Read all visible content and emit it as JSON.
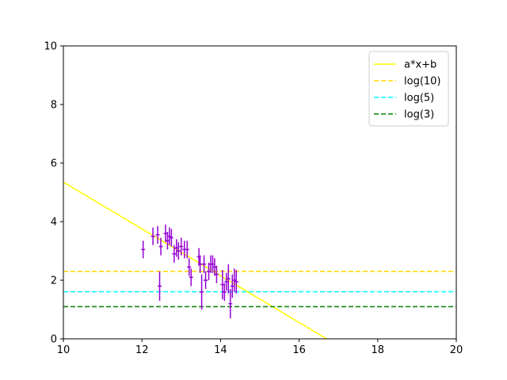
{
  "chart_data": {
    "type": "scatter",
    "title": "",
    "xlabel": "",
    "ylabel": "",
    "xlim": [
      10,
      20
    ],
    "ylim": [
      0,
      10
    ],
    "xticks": [
      10,
      12,
      14,
      16,
      18,
      20
    ],
    "yticks": [
      0,
      2,
      4,
      6,
      8,
      10
    ],
    "grid": false,
    "legend_position": "top-right",
    "lines": [
      {
        "name": "a*x+b",
        "kind": "linear",
        "x": [
          10,
          16.7
        ],
        "y": [
          5.35,
          0.0
        ],
        "color": "#ffff00",
        "dash": "solid"
      },
      {
        "name": "log(10)",
        "kind": "constant",
        "value": 2.303,
        "color": "#ffd700",
        "dash": "dashed"
      },
      {
        "name": "log(5)",
        "kind": "constant",
        "value": 1.609,
        "color": "#00ffff",
        "dash": "dashed"
      },
      {
        "name": "log(3)",
        "kind": "constant",
        "value": 1.099,
        "color": "#008000",
        "dash": "dashed"
      }
    ],
    "points": {
      "color": "#9400d3",
      "data": [
        {
          "x": 12.03,
          "y": 3.05,
          "ye": 0.3,
          "xe": 0.05
        },
        {
          "x": 12.28,
          "y": 3.5,
          "ye": 0.3,
          "xe": 0.05
        },
        {
          "x": 12.4,
          "y": 3.55,
          "ye": 0.3,
          "xe": 0.05
        },
        {
          "x": 12.45,
          "y": 1.8,
          "ye": 0.5,
          "xe": 0.05
        },
        {
          "x": 12.48,
          "y": 3.15,
          "ye": 0.3,
          "xe": 0.05
        },
        {
          "x": 12.6,
          "y": 3.6,
          "ye": 0.3,
          "xe": 0.05
        },
        {
          "x": 12.65,
          "y": 3.35,
          "ye": 0.3,
          "xe": 0.05
        },
        {
          "x": 12.7,
          "y": 3.5,
          "ye": 0.3,
          "xe": 0.05
        },
        {
          "x": 12.75,
          "y": 3.45,
          "ye": 0.3,
          "xe": 0.05
        },
        {
          "x": 12.82,
          "y": 2.9,
          "ye": 0.3,
          "xe": 0.05
        },
        {
          "x": 12.88,
          "y": 3.1,
          "ye": 0.3,
          "xe": 0.05
        },
        {
          "x": 12.93,
          "y": 3.0,
          "ye": 0.3,
          "xe": 0.05
        },
        {
          "x": 13.0,
          "y": 3.15,
          "ye": 0.3,
          "xe": 0.05
        },
        {
          "x": 13.08,
          "y": 3.05,
          "ye": 0.3,
          "xe": 0.05
        },
        {
          "x": 13.15,
          "y": 3.05,
          "ye": 0.3,
          "xe": 0.05
        },
        {
          "x": 13.2,
          "y": 2.45,
          "ye": 0.3,
          "xe": 0.05
        },
        {
          "x": 13.25,
          "y": 2.1,
          "ye": 0.3,
          "xe": 0.05
        },
        {
          "x": 13.45,
          "y": 2.8,
          "ye": 0.3,
          "xe": 0.05
        },
        {
          "x": 13.48,
          "y": 2.55,
          "ye": 0.3,
          "xe": 0.05
        },
        {
          "x": 13.52,
          "y": 1.6,
          "ye": 0.6,
          "xe": 0.05
        },
        {
          "x": 13.58,
          "y": 2.55,
          "ye": 0.3,
          "xe": 0.05
        },
        {
          "x": 13.62,
          "y": 2.0,
          "ye": 0.3,
          "xe": 0.05
        },
        {
          "x": 13.7,
          "y": 2.3,
          "ye": 0.3,
          "xe": 0.05
        },
        {
          "x": 13.75,
          "y": 2.55,
          "ye": 0.3,
          "xe": 0.05
        },
        {
          "x": 13.8,
          "y": 2.55,
          "ye": 0.3,
          "xe": 0.05
        },
        {
          "x": 13.85,
          "y": 2.45,
          "ye": 0.3,
          "xe": 0.05
        },
        {
          "x": 13.9,
          "y": 2.2,
          "ye": 0.3,
          "xe": 0.05
        },
        {
          "x": 14.05,
          "y": 1.85,
          "ye": 0.5,
          "xe": 0.05
        },
        {
          "x": 14.1,
          "y": 1.6,
          "ye": 0.3,
          "xe": 0.05
        },
        {
          "x": 14.15,
          "y": 1.95,
          "ye": 0.3,
          "xe": 0.05
        },
        {
          "x": 14.2,
          "y": 2.05,
          "ye": 0.5,
          "xe": 0.05
        },
        {
          "x": 14.25,
          "y": 1.2,
          "ye": 0.5,
          "xe": 0.05
        },
        {
          "x": 14.3,
          "y": 1.8,
          "ye": 0.4,
          "xe": 0.05
        },
        {
          "x": 14.35,
          "y": 2.0,
          "ye": 0.4,
          "xe": 0.05
        },
        {
          "x": 14.4,
          "y": 1.95,
          "ye": 0.4,
          "xe": 0.05
        }
      ]
    }
  }
}
